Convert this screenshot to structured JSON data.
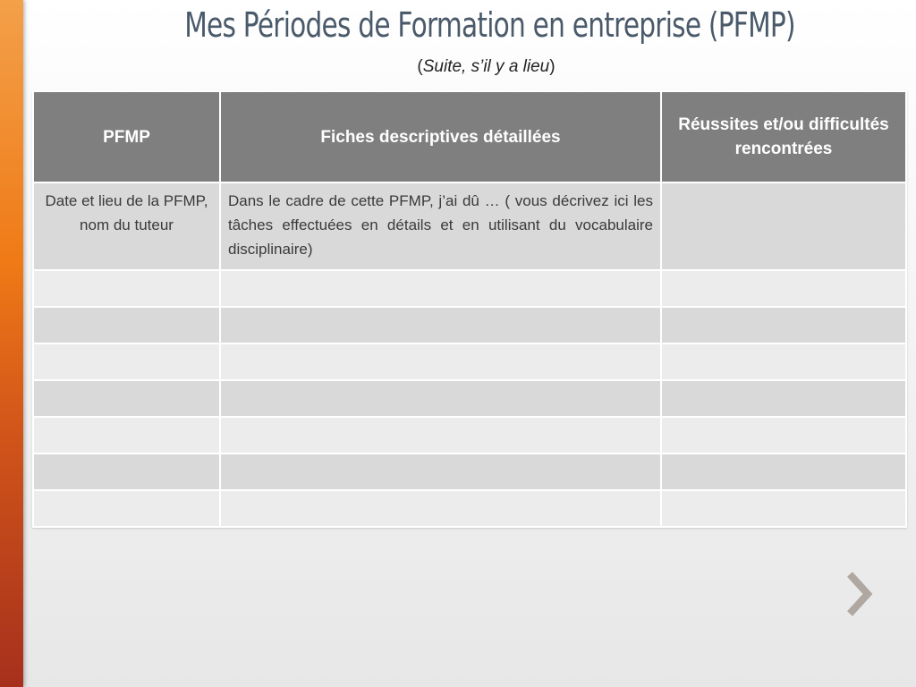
{
  "slide": {
    "title": "Mes Périodes de Formation en entreprise (PFMP)",
    "subtitle_open": "(",
    "subtitle_italic": "Suite, s’il y a lieu",
    "subtitle_close": ")"
  },
  "table": {
    "headers": [
      "PFMP",
      "Fiches descriptives détaillées",
      "Réussites et/ou difficultés rencontrées"
    ],
    "first_row": [
      "Date et lieu de la PFMP, nom du tuteur",
      "Dans le cadre de cette PFMP, j’ai dû … ( vous décrivez ici les tâches effectuées en détails et en utilisant du vocabulaire disciplinaire)",
      ""
    ],
    "empty_row_count_note": ""
  },
  "navigation": {
    "next_icon": "chevron-right-icon"
  },
  "colors": {
    "accent_bar": "#ef7a16",
    "header_bg": "#7f7f7f",
    "row_band_dark": "#d9d9d9",
    "row_band_light": "#ececec",
    "title_color": "#4a5a6a",
    "arrow_color": "#b0a7a0"
  }
}
